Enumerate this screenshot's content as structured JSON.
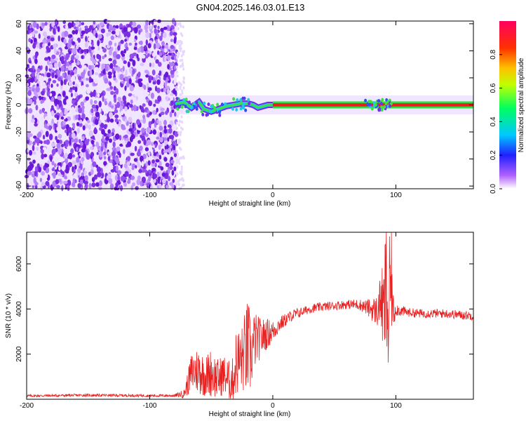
{
  "page_title": "GN04.2025.146.03.01.E13",
  "chart_data": [
    {
      "type": "heatmap",
      "title": "GN04.2025.146.03.01.E13",
      "xlabel": "Height of straight line (km)",
      "ylabel": "Frequency (Hz)",
      "xlim": [
        -200,
        163
      ],
      "ylim": [
        -62,
        62
      ],
      "x_ticks": [
        "-200",
        "-100",
        "0",
        "100"
      ],
      "y_ticks": [
        "60",
        "40",
        "20",
        "0",
        "-20",
        "-40",
        "-60"
      ],
      "colorbar": {
        "label": "Normalized spectral amplitude",
        "range": [
          0,
          1
        ],
        "ticks": [
          "0.0",
          "0.2",
          "0.4",
          "0.6",
          "0.8"
        ],
        "colormap": [
          "#ffffff",
          "#a000ff",
          "#0040ff",
          "#00e0ff",
          "#00ff40",
          "#ffff00",
          "#ff8000",
          "#ff0000",
          "#ff0080"
        ]
      },
      "noise_region_x": [
        -200,
        -78
      ],
      "signal_line_frequency_hz": 0,
      "colors": {
        "noise": "#8a3cf0",
        "line_core": "#e8201c",
        "line_band": "#30e040"
      },
      "grid": false
    },
    {
      "type": "line",
      "xlabel": "Height of straight line (km)",
      "ylabel": "SNR (10 * v/v)",
      "xlim": [
        -200,
        163
      ],
      "ylim": [
        0,
        7400
      ],
      "x_ticks": [
        "-200",
        "-100",
        "0",
        "100"
      ],
      "y_ticks": [
        "2000",
        "4000",
        "6000"
      ],
      "series": [
        {
          "color": "#e82020",
          "envelope": {
            "x": [
              -200,
              -150,
              -100,
              -80,
              -72,
              -66,
              -60,
              -55,
              -50,
              -45,
              -40,
              -35,
              -32,
              -30,
              -25,
              -20,
              -18,
              -15,
              -10,
              -5,
              0,
              5,
              10,
              15,
              20,
              25,
              30,
              40,
              50,
              60,
              70,
              75,
              80,
              85,
              88,
              90,
              92,
              94,
              96,
              98,
              100,
              105,
              110,
              120,
              130,
              140,
              150,
              163
            ],
            "y": [
              150,
              180,
              160,
              160,
              250,
              1200,
              1300,
              1000,
              1200,
              900,
              1100,
              800,
              900,
              1600,
              1800,
              2300,
              1800,
              2600,
              2700,
              2900,
              3000,
              3300,
              3500,
              3700,
              3800,
              3900,
              4000,
              4100,
              4150,
              4200,
              4200,
              4100,
              4000,
              3900,
              4500,
              3500,
              5000,
              3200,
              5500,
              3800,
              4000,
              3900,
              3850,
              3800,
              3800,
              3800,
              3750,
              3700
            ],
            "spread": [
              60,
              60,
              60,
              60,
              200,
              900,
              1100,
              900,
              1100,
              900,
              900,
              900,
              1000,
              1500,
              1500,
              2300,
              1600,
              1300,
              900,
              700,
              500,
              350,
              300,
              250,
              250,
              200,
              200,
              200,
              200,
              200,
              250,
              300,
              500,
              700,
              1200,
              2500,
              3000,
              3500,
              2500,
              800,
              300,
              250,
              200,
              200,
              200,
              200,
              200,
              200
            ]
          }
        }
      ],
      "grid": false
    }
  ]
}
